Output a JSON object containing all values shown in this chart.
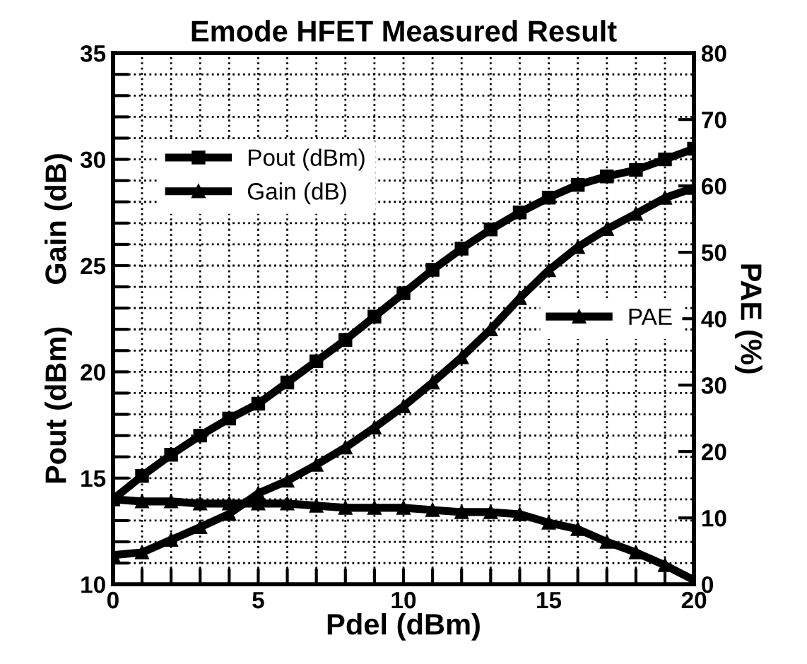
{
  "chart_data": {
    "type": "line",
    "title": "Emode HFET Measured Result",
    "xlabel": "Pdel (dBm)",
    "ylabel": "Pout (dBm)     Gain (dB)",
    "y2label": "PAE (%)",
    "x": [
      0,
      1,
      2,
      3,
      4,
      5,
      6,
      7,
      8,
      9,
      10,
      11,
      12,
      13,
      14,
      15,
      16,
      17,
      18,
      19,
      20
    ],
    "series": [
      {
        "name": "Pout (dBm)",
        "color": "#000000",
        "marker": "square",
        "values": [
          14.0,
          15.1,
          16.1,
          17.0,
          17.8,
          18.5,
          19.5,
          20.5,
          21.5,
          22.6,
          23.7,
          24.8,
          25.8,
          26.7,
          27.5,
          28.2,
          28.8,
          29.2,
          29.5,
          30.0,
          30.5
        ]
      },
      {
        "name": "Gain (dB)",
        "color": "#000000",
        "marker": "triangle",
        "values": [
          14.0,
          13.9,
          13.9,
          13.8,
          13.8,
          13.8,
          13.8,
          13.7,
          13.6,
          13.6,
          13.6,
          13.5,
          13.4,
          13.4,
          13.3,
          12.9,
          12.6,
          12.0,
          11.5,
          10.9,
          10.2
        ]
      },
      {
        "name": "PAE",
        "color": "#000000",
        "marker": "triangle",
        "axis": "y2",
        "values": [
          4.4,
          4.8,
          6.7,
          8.6,
          10.6,
          13.7,
          15.6,
          18.0,
          20.6,
          23.6,
          26.8,
          30.4,
          34.2,
          38.4,
          43.1,
          47.3,
          50.8,
          53.5,
          55.8,
          58.2,
          59.7
        ]
      }
    ],
    "xlim": [
      0,
      20
    ],
    "xticks": [
      0,
      {
        "value": 1,
        "label": null
      },
      {
        "value": 2,
        "label": null
      },
      {
        "value": 3,
        "label": null
      },
      {
        "value": 4,
        "label": null
      },
      5,
      {
        "value": 6,
        "label": null
      },
      {
        "value": 7,
        "label": null
      },
      {
        "value": 8,
        "label": null
      },
      {
        "value": 9,
        "label": null
      },
      10,
      {
        "value": 11,
        "label": null
      },
      {
        "value": 12,
        "label": null
      },
      {
        "value": 13,
        "label": null
      },
      {
        "value": 14,
        "label": null
      },
      15,
      {
        "value": 16,
        "label": null
      },
      {
        "value": 17,
        "label": null
      },
      {
        "value": 18,
        "label": null
      },
      {
        "value": 19,
        "label": null
      },
      20
    ],
    "ylim": [
      10,
      35
    ],
    "yticks": [
      10,
      {
        "value": 11,
        "label": null
      },
      {
        "value": 12,
        "label": null
      },
      {
        "value": 13,
        "label": null
      },
      {
        "value": 14,
        "label": null
      },
      15,
      {
        "value": 16,
        "label": null
      },
      {
        "value": 17,
        "label": null
      },
      {
        "value": 18,
        "label": null
      },
      {
        "value": 19,
        "label": null
      },
      20,
      {
        "value": 21,
        "label": null
      },
      {
        "value": 22,
        "label": null
      },
      {
        "value": 23,
        "label": null
      },
      {
        "value": 24,
        "label": null
      },
      25,
      {
        "value": 26,
        "label": null
      },
      {
        "value": 27,
        "label": null
      },
      {
        "value": 28,
        "label": null
      },
      {
        "value": 29,
        "label": null
      },
      30,
      {
        "value": 31,
        "label": null
      },
      {
        "value": 32,
        "label": null
      },
      {
        "value": 33,
        "label": null
      },
      {
        "value": 34,
        "label": null
      },
      35
    ],
    "y2lim": [
      0,
      80
    ],
    "y2ticks": [
      0,
      10,
      20,
      30,
      40,
      50,
      60,
      70,
      80
    ],
    "grid": true,
    "legend": "top left",
    "line_style": "solid"
  }
}
